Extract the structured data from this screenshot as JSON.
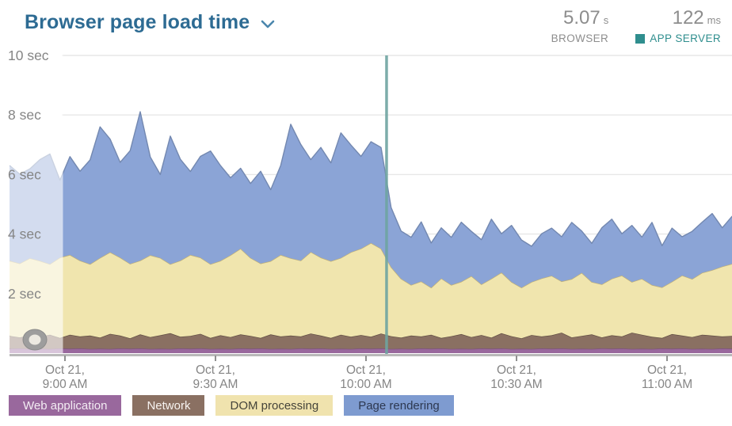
{
  "header": {
    "title": "Browser page load time",
    "metrics": {
      "browser": {
        "value": "5.07",
        "unit": "s",
        "label": "BROWSER"
      },
      "app_server": {
        "value": "122",
        "unit": "ms",
        "label": "APP SERVER"
      }
    }
  },
  "colors": {
    "title_blue": "#2d6b93",
    "metric_gray": "#8d8d8d",
    "app_server_teal": "#2f8e8e",
    "gridline": "#e7e7e7",
    "axis_bar": "#b9b9b9",
    "tick_mark": "#8f8f8f",
    "axis_label": "#858585",
    "deploy_marker": "#6fa5a1",
    "faded_overlay": "rgba(255,255,255,0.62)"
  },
  "legend": [
    {
      "label": "Web application",
      "bg": "#99689d",
      "text": "#f3ecf3"
    },
    {
      "label": "Network",
      "bg": "#8a7062",
      "text": "#f7f3f0"
    },
    {
      "label": "DOM processing",
      "bg": "#f0e3ae",
      "text": "#45443a"
    },
    {
      "label": "Page rendering",
      "bg": "#7e9bd0",
      "text": "#2d3850"
    }
  ],
  "chart_data": {
    "type": "area",
    "stacked": true,
    "title": "Browser page load time",
    "xlabel": "",
    "ylabel": "seconds",
    "ylim": [
      0,
      10
    ],
    "grid": true,
    "legend_position": "bottom",
    "x_unit": "minutes relative to Oct 21 9:00 AM",
    "x_minutes": [
      -11,
      -9,
      -7,
      -5,
      -3,
      -1,
      1,
      3,
      5,
      7,
      9,
      11,
      13,
      15,
      17,
      19,
      21,
      23,
      25,
      27,
      29,
      31,
      33,
      35,
      37,
      39,
      41,
      43,
      45,
      47,
      49,
      51,
      53,
      55,
      57,
      59,
      61,
      63,
      65,
      67,
      69,
      71,
      73,
      75,
      77,
      79,
      81,
      83,
      85,
      87,
      89,
      91,
      93,
      95,
      97,
      99,
      101,
      103,
      105,
      107,
      109,
      111,
      113,
      115,
      117,
      119,
      121,
      123,
      125,
      127,
      129,
      131,
      133
    ],
    "series": [
      {
        "name": "Web application",
        "color": "#99689d",
        "edge": "#7d5181",
        "values": [
          0.15,
          0.16,
          0.14,
          0.15,
          0.14,
          0.16,
          0.15,
          0.16,
          0.14,
          0.15,
          0.14,
          0.16,
          0.15,
          0.16,
          0.14,
          0.15,
          0.14,
          0.16,
          0.15,
          0.16,
          0.14,
          0.15,
          0.14,
          0.16,
          0.15,
          0.16,
          0.14,
          0.15,
          0.14,
          0.16,
          0.15,
          0.16,
          0.14,
          0.15,
          0.14,
          0.16,
          0.15,
          0.16,
          0.14,
          0.15,
          0.14,
          0.16,
          0.15,
          0.16,
          0.14,
          0.15,
          0.14,
          0.16,
          0.15,
          0.16,
          0.14,
          0.15,
          0.14,
          0.16,
          0.15,
          0.16,
          0.14,
          0.15,
          0.14,
          0.16,
          0.15,
          0.16,
          0.14,
          0.15,
          0.14,
          0.16,
          0.15,
          0.16,
          0.14,
          0.15,
          0.14,
          0.16,
          0.15
        ]
      },
      {
        "name": "Network",
        "color": "#8a7062",
        "edge": "#614e43",
        "values": [
          0.43,
          0.37,
          0.45,
          0.4,
          0.48,
          0.35,
          0.47,
          0.4,
          0.45,
          0.37,
          0.51,
          0.43,
          0.35,
          0.47,
          0.4,
          0.45,
          0.53,
          0.39,
          0.43,
          0.49,
          0.37,
          0.45,
          0.4,
          0.47,
          0.43,
          0.35,
          0.49,
          0.41,
          0.45,
          0.4,
          0.51,
          0.43,
          0.37,
          0.47,
          0.41,
          0.45,
          0.4,
          0.5,
          0.43,
          0.37,
          0.45,
          0.4,
          0.47,
          0.35,
          0.43,
          0.49,
          0.4,
          0.45,
          0.37,
          0.51,
          0.43,
          0.35,
          0.47,
          0.4,
          0.45,
          0.53,
          0.39,
          0.43,
          0.49,
          0.37,
          0.45,
          0.4,
          0.55,
          0.47,
          0.41,
          0.35,
          0.49,
          0.43,
          0.4,
          0.47,
          0.45,
          0.4,
          0.43
        ]
      },
      {
        "name": "DOM processing",
        "color": "#f0e5ae",
        "edge": "#c0b077",
        "values": [
          2.52,
          2.48,
          2.6,
          2.55,
          2.37,
          2.7,
          2.68,
          2.55,
          2.4,
          2.68,
          2.74,
          2.62,
          2.5,
          2.48,
          2.75,
          2.6,
          2.32,
          2.56,
          2.72,
          2.56,
          2.48,
          2.5,
          2.75,
          2.88,
          2.62,
          2.5,
          2.46,
          2.74,
          2.6,
          2.55,
          2.74,
          2.62,
          2.58,
          2.58,
          2.84,
          2.9,
          3.15,
          2.85,
          2.32,
          1.98,
          1.7,
          1.85,
          1.58,
          2.0,
          1.72,
          1.76,
          2.05,
          1.7,
          1.98,
          2.04,
          1.82,
          1.7,
          1.78,
          1.95,
          2.0,
          1.72,
          1.96,
          2.12,
          1.76,
          1.78,
          1.9,
          2.05,
          1.7,
          1.88,
          1.74,
          1.7,
          1.76,
          2.02,
          1.95,
          2.08,
          2.2,
          2.35,
          2.42
        ]
      },
      {
        "name": "Page rendering",
        "color": "#8ba4d6",
        "edge": "#7388b0",
        "values": [
          3.2,
          3.0,
          3.0,
          3.4,
          3.7,
          2.6,
          3.3,
          3.0,
          3.5,
          4.4,
          3.8,
          3.2,
          3.8,
          5.0,
          3.3,
          2.8,
          4.3,
          3.4,
          2.8,
          3.4,
          3.8,
          3.2,
          2.6,
          2.7,
          2.5,
          3.1,
          2.4,
          3.0,
          4.5,
          3.9,
          3.1,
          3.7,
          3.3,
          4.2,
          3.6,
          3.1,
          3.4,
          3.4,
          2.0,
          1.6,
          1.6,
          2.0,
          1.5,
          1.7,
          1.6,
          2.0,
          1.5,
          1.5,
          2.0,
          1.3,
          1.9,
          1.6,
          1.2,
          1.5,
          1.6,
          1.5,
          1.9,
          1.4,
          1.3,
          1.9,
          2.0,
          1.4,
          1.9,
          1.4,
          2.1,
          1.4,
          1.8,
          1.3,
          1.6,
          1.7,
          1.9,
          1.3,
          1.6
        ]
      }
    ],
    "yticks": [
      {
        "value": 10,
        "label": "10 sec"
      },
      {
        "value": 8,
        "label": "8 sec"
      },
      {
        "value": 6,
        "label": "6 sec"
      },
      {
        "value": 4,
        "label": "4 sec"
      },
      {
        "value": 2,
        "label": "2 sec"
      }
    ],
    "xticks": [
      {
        "minute": 0,
        "line1": "Oct 21,",
        "line2": "9:00 AM"
      },
      {
        "minute": 30,
        "line1": "Oct 21,",
        "line2": "9:30 AM"
      },
      {
        "minute": 60,
        "line1": "Oct 21,",
        "line2": "10:00 AM"
      },
      {
        "minute": 90,
        "line1": "Oct 21,",
        "line2": "10:30 AM"
      },
      {
        "minute": 120,
        "line1": "Oct 21,",
        "line2": "11:00 AM"
      }
    ],
    "deploy_marker_minute": 64.1,
    "faded_region_minutes": [
      -11,
      -0.4
    ]
  }
}
